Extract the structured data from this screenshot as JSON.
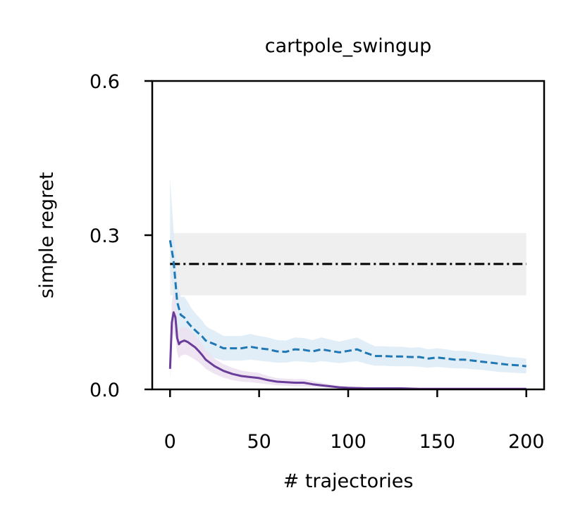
{
  "chart_data": {
    "type": "line",
    "title": "cartpole_swingup",
    "xlabel": "# trajectories",
    "ylabel": "simple regret",
    "xlim": [
      -10,
      210
    ],
    "ylim": [
      0.0,
      0.6
    ],
    "xticks": [
      0,
      50,
      100,
      150,
      200
    ],
    "xtick_labels": [
      "0",
      "50",
      "100",
      "150",
      "200"
    ],
    "yticks": [
      0.0,
      0.3,
      0.6
    ],
    "ytick_labels": [
      "0.0",
      "0.3",
      "0.6"
    ],
    "grid": false,
    "legend": "none",
    "baseline": {
      "style": "dash-dot",
      "color": "#000000",
      "x": [
        0,
        200
      ],
      "y": 0.244,
      "band": [
        0.183,
        0.304
      ],
      "band_color": "#efefef"
    },
    "series": [
      {
        "style": "dashed",
        "color": "#1f77b4",
        "band_color": "#dcebf6",
        "x": [
          0,
          2,
          4,
          6,
          8,
          10,
          12,
          15,
          18,
          20,
          22,
          25,
          28,
          30,
          35,
          40,
          45,
          50,
          55,
          60,
          65,
          70,
          75,
          80,
          85,
          90,
          95,
          100,
          105,
          110,
          115,
          120,
          125,
          130,
          135,
          140,
          145,
          150,
          155,
          160,
          165,
          170,
          175,
          180,
          185,
          190,
          195,
          200
        ],
        "y": [
          0.29,
          0.25,
          0.17,
          0.145,
          0.14,
          0.13,
          0.122,
          0.112,
          0.103,
          0.095,
          0.092,
          0.088,
          0.083,
          0.08,
          0.08,
          0.08,
          0.083,
          0.08,
          0.078,
          0.074,
          0.073,
          0.078,
          0.077,
          0.074,
          0.078,
          0.075,
          0.072,
          0.075,
          0.078,
          0.071,
          0.065,
          0.065,
          0.064,
          0.064,
          0.063,
          0.063,
          0.06,
          0.062,
          0.06,
          0.058,
          0.058,
          0.056,
          0.054,
          0.052,
          0.05,
          0.048,
          0.047,
          0.045
        ],
        "lower": [
          0.23,
          0.19,
          0.12,
          0.1,
          0.097,
          0.09,
          0.084,
          0.076,
          0.07,
          0.066,
          0.064,
          0.061,
          0.058,
          0.056,
          0.056,
          0.056,
          0.058,
          0.056,
          0.054,
          0.052,
          0.052,
          0.055,
          0.054,
          0.052,
          0.055,
          0.053,
          0.051,
          0.053,
          0.055,
          0.05,
          0.046,
          0.046,
          0.045,
          0.045,
          0.045,
          0.044,
          0.042,
          0.044,
          0.042,
          0.041,
          0.041,
          0.039,
          0.038,
          0.036,
          0.034,
          0.033,
          0.032,
          0.031
        ],
        "upper": [
          0.41,
          0.31,
          0.21,
          0.18,
          0.18,
          0.17,
          0.158,
          0.145,
          0.134,
          0.124,
          0.119,
          0.114,
          0.108,
          0.104,
          0.104,
          0.104,
          0.108,
          0.104,
          0.101,
          0.096,
          0.095,
          0.101,
          0.1,
          0.096,
          0.101,
          0.097,
          0.093,
          0.097,
          0.101,
          0.092,
          0.084,
          0.084,
          0.083,
          0.083,
          0.081,
          0.082,
          0.078,
          0.08,
          0.078,
          0.075,
          0.075,
          0.073,
          0.07,
          0.068,
          0.066,
          0.063,
          0.062,
          0.06
        ]
      },
      {
        "style": "solid",
        "color": "#6a3d9a",
        "band_color": "#ece0f0",
        "x": [
          0,
          1,
          2,
          3,
          4,
          5,
          6,
          8,
          10,
          12,
          14,
          16,
          18,
          20,
          25,
          30,
          35,
          40,
          45,
          50,
          55,
          60,
          65,
          70,
          75,
          80,
          85,
          90,
          95,
          100,
          110,
          120,
          130,
          140,
          150,
          160,
          170,
          180,
          190,
          200
        ],
        "y": [
          0.04,
          0.13,
          0.15,
          0.14,
          0.1,
          0.088,
          0.092,
          0.095,
          0.092,
          0.087,
          0.082,
          0.075,
          0.067,
          0.058,
          0.045,
          0.036,
          0.03,
          0.026,
          0.024,
          0.022,
          0.018,
          0.015,
          0.014,
          0.013,
          0.013,
          0.01,
          0.008,
          0.006,
          0.004,
          0.003,
          0.002,
          0.002,
          0.002,
          0.001,
          0.001,
          0.001,
          0.001,
          0.001,
          0.001,
          0.001
        ],
        "lower": [
          0.02,
          0.09,
          0.11,
          0.1,
          0.07,
          0.06,
          0.065,
          0.068,
          0.066,
          0.062,
          0.058,
          0.053,
          0.047,
          0.04,
          0.03,
          0.023,
          0.018,
          0.015,
          0.014,
          0.012,
          0.01,
          0.008,
          0.007,
          0.006,
          0.006,
          0.005,
          0.004,
          0.003,
          0.002,
          0.001,
          0.001,
          0.001,
          0.001,
          0.0,
          0.0,
          0.0,
          0.0,
          0.0,
          0.0,
          0.0
        ],
        "upper": [
          0.06,
          0.17,
          0.19,
          0.18,
          0.13,
          0.115,
          0.12,
          0.122,
          0.118,
          0.112,
          0.106,
          0.097,
          0.087,
          0.076,
          0.06,
          0.049,
          0.042,
          0.037,
          0.034,
          0.032,
          0.026,
          0.022,
          0.021,
          0.02,
          0.02,
          0.016,
          0.013,
          0.01,
          0.007,
          0.005,
          0.004,
          0.004,
          0.004,
          0.003,
          0.003,
          0.003,
          0.003,
          0.003,
          0.003,
          0.003
        ]
      }
    ]
  }
}
